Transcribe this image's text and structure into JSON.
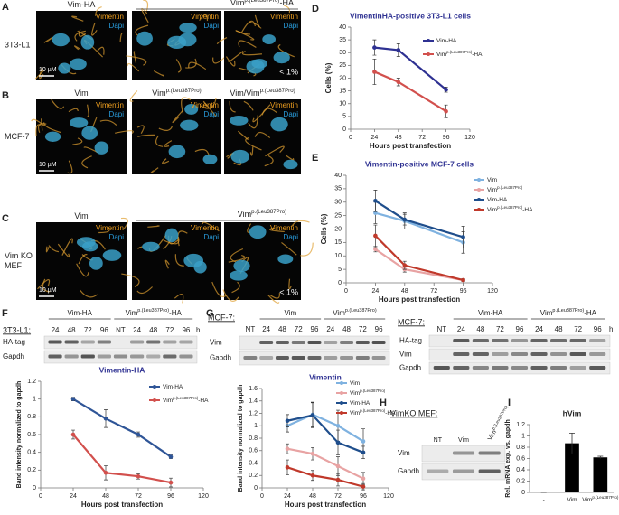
{
  "panels": {
    "A": {
      "label": "A",
      "row_label": "3T3-L1",
      "headers": [
        {
          "text": "Vim-HA"
        },
        {
          "text": "Vim",
          "sup": "p.(Leu387Pro)",
          "suffix": "-HA"
        }
      ],
      "stain_1": "Vimentin",
      "stain_2": "Dapi",
      "scale": "10 µM",
      "note": "< 1%"
    },
    "B": {
      "label": "B",
      "row_label": "MCF-7",
      "headers": [
        {
          "text": "Vim"
        },
        {
          "text": "Vim",
          "sup": "p.(Leu387Pro)"
        },
        {
          "text": "Vim/Vim",
          "sup": "p.(Leu387Pro)"
        }
      ],
      "stain_1": "Vimentin",
      "stain_2": "Dapi",
      "scale": "10 µM"
    },
    "C": {
      "label": "C",
      "row_label": [
        "Vim KO",
        "MEF"
      ],
      "headers": [
        {
          "text": "Vim"
        },
        {
          "text": "Vim",
          "sup": "p.(Leu387Pro)"
        }
      ],
      "stain_1": "Vimentin",
      "stain_2": "Dapi",
      "scale": "10 µM",
      "note": "< 1%"
    },
    "F_blot": {
      "label": "F",
      "cell_line": "3T3-L1:",
      "groups": [
        {
          "text": "Vim-HA"
        },
        {
          "text": "Vim",
          "sup": "p.(Leu387Pro)",
          "suffix": "-HA"
        }
      ],
      "lanes": [
        "24",
        "48",
        "72",
        "96",
        "NT",
        "24",
        "48",
        "72",
        "96"
      ],
      "lane_unit": "h",
      "rows": [
        "HA-tag",
        "Gapdh"
      ]
    },
    "G_blot": {
      "label": "G",
      "cell_line": "MCF-7:",
      "groups": [
        {
          "text": "Vim"
        },
        {
          "text": "Vim",
          "sup": "p.(Leu387Pro)"
        }
      ],
      "lanes": [
        "NT",
        "24",
        "48",
        "72",
        "96",
        "24",
        "48",
        "72",
        "96"
      ],
      "rows": [
        "Vim",
        "Gapdh"
      ]
    },
    "G_blot_2": {
      "cell_line": "MCF-7:",
      "groups": [
        {
          "text": "Vim-HA"
        },
        {
          "text": "Vim",
          "sup": "p.(Leu387Pro)",
          "suffix": "-HA"
        }
      ],
      "lanes": [
        "NT",
        "24",
        "48",
        "72",
        "96",
        "24",
        "48",
        "72",
        "96"
      ],
      "lane_unit": "h",
      "rows": [
        "HA-tag",
        "Vim",
        "Gapdh"
      ]
    },
    "H_blot": {
      "label": "H",
      "cell_line": "VimKO MEF:",
      "lanes": [
        {
          "text": "NT"
        },
        {
          "text": "Vim"
        },
        {
          "text": "Vim",
          "sup": "p.(Leu387Pro)"
        }
      ],
      "rows": [
        "Vim",
        "Gapdh"
      ]
    }
  },
  "chart_data": [
    {
      "type": "line",
      "panel_label": "D",
      "title": "VimentinHA-positive 3T3-L1 cells",
      "y_label": "Cells (%)",
      "x_label": "Hours post transfection",
      "x": [
        24,
        48,
        96
      ],
      "xlim": [
        0,
        120
      ],
      "xticks": [
        0,
        24,
        48,
        72,
        96,
        120
      ],
      "ylim": [
        0,
        40
      ],
      "yticks": [
        0,
        5,
        10,
        15,
        20,
        25,
        30,
        35,
        40
      ],
      "series": [
        {
          "name": "Vim-HA",
          "color": "#2e3192",
          "values": [
            32,
            31,
            15.5
          ],
          "errors": [
            3,
            2.5,
            1
          ]
        },
        {
          "name": "Vim",
          "sup": "p.(Leu387Pro)",
          "suffix": "-HA",
          "color": "#d2504d",
          "values": [
            22.5,
            18.5,
            7
          ],
          "errors": [
            5,
            1.5,
            2.5
          ]
        }
      ]
    },
    {
      "type": "line",
      "panel_label": "E",
      "title": "Vimentin-positive MCF-7 cells",
      "y_label": "Cells (%)",
      "x_label": "Hours post transfection",
      "x": [
        24,
        48,
        96
      ],
      "xlim": [
        0,
        120
      ],
      "xticks": [
        0,
        24,
        48,
        72,
        96,
        120
      ],
      "ylim": [
        0,
        40
      ],
      "yticks": [
        0,
        5,
        10,
        15,
        20,
        25,
        30,
        35,
        40
      ],
      "series": [
        {
          "name": "Vim",
          "color": "#7fb2e0",
          "values": [
            26,
            23,
            15
          ],
          "errors": [
            4,
            3,
            4
          ]
        },
        {
          "name": "Vim",
          "sup": "p.(Leu387Pro)",
          "color": "#e8a3a3",
          "values": [
            12.5,
            5,
            1
          ],
          "errors": [
            1,
            1,
            0.5
          ]
        },
        {
          "name": "Vim-HA",
          "color": "#1f4e8c",
          "values": [
            30.5,
            23.5,
            17
          ],
          "errors": [
            4,
            2,
            4
          ]
        },
        {
          "name": "Vim",
          "sup": "p.(Leu387Pro)",
          "suffix": "-HA",
          "color": "#c0392b",
          "values": [
            17.5,
            6.5,
            1
          ],
          "errors": [
            4,
            1.5,
            0.5
          ]
        }
      ]
    },
    {
      "type": "line",
      "panel_label": "F",
      "title": "Vimentin-HA",
      "y_label": "Band intensity normalized to gapdh",
      "x_label": "Hours post transfection",
      "x": [
        24,
        48,
        72,
        96
      ],
      "xlim": [
        0,
        120
      ],
      "xticks": [
        0,
        24,
        48,
        72,
        96,
        120
      ],
      "ylim": [
        0,
        1.2
      ],
      "yticks": [
        0,
        0.2,
        0.4,
        0.6,
        0.8,
        1,
        1.2
      ],
      "series": [
        {
          "name": "Vim-HA",
          "color": "#2f5597",
          "values": [
            1.0,
            0.78,
            0.6,
            0.35
          ],
          "errors": [
            0.02,
            0.1,
            0.03,
            0.02
          ]
        },
        {
          "name": "Vim",
          "sup": "p.(Leu387Pro)",
          "suffix": "-HA",
          "color": "#d2504d",
          "values": [
            0.6,
            0.17,
            0.13,
            0.06
          ],
          "errors": [
            0.05,
            0.08,
            0.03,
            0.05
          ]
        }
      ]
    },
    {
      "type": "line",
      "panel_label": "G",
      "title": "Vimentin",
      "y_label": "Band intensity normalized to gapdh",
      "x_label": "Hours post transfection",
      "x": [
        24,
        48,
        72,
        96
      ],
      "xlim": [
        0,
        120
      ],
      "xticks": [
        0,
        24,
        48,
        72,
        96,
        120
      ],
      "ylim": [
        0,
        1.6
      ],
      "yticks": [
        0,
        0.2,
        0.4,
        0.6,
        0.8,
        1,
        1.2,
        1.4,
        1.6
      ],
      "series": [
        {
          "name": "Vim",
          "color": "#7fb2e0",
          "values": [
            1.0,
            1.18,
            1.0,
            0.75
          ],
          "errors": [
            0.1,
            0.2,
            0.25,
            0.2
          ]
        },
        {
          "name": "Vim",
          "sup": "p.(Leu387Pro)",
          "color": "#e8a3a3",
          "values": [
            0.63,
            0.55,
            0.35,
            0.15
          ],
          "errors": [
            0.08,
            0.1,
            0.15,
            0.1
          ]
        },
        {
          "name": "Vim-HA",
          "color": "#1f4e8c",
          "values": [
            1.08,
            1.17,
            0.73,
            0.57
          ],
          "errors": [
            0.1,
            0.2,
            0.2,
            0.1
          ]
        },
        {
          "name": "Vim",
          "sup": "p.(Leu387Pro)",
          "suffix": "-HA",
          "color": "#c0392b",
          "values": [
            0.33,
            0.2,
            0.13,
            0.02
          ],
          "errors": [
            0.12,
            0.08,
            0.1,
            0.05
          ]
        }
      ]
    },
    {
      "type": "bar",
      "panel_label": "I",
      "title": "hVim",
      "y_label": "Rel. mRNA exp. vs. gapdh",
      "categories": [
        "-",
        "Vim",
        "Vim"
      ],
      "category_sups": [
        null,
        null,
        "p.(Leu387Pro)"
      ],
      "values": [
        0,
        0.87,
        0.62
      ],
      "errors": [
        0,
        0.18,
        0.02
      ],
      "color": "#000000",
      "ylim": [
        0,
        1.2
      ],
      "yticks": [
        0,
        0.2,
        0.4,
        0.6,
        0.8,
        1,
        1.2
      ]
    }
  ]
}
